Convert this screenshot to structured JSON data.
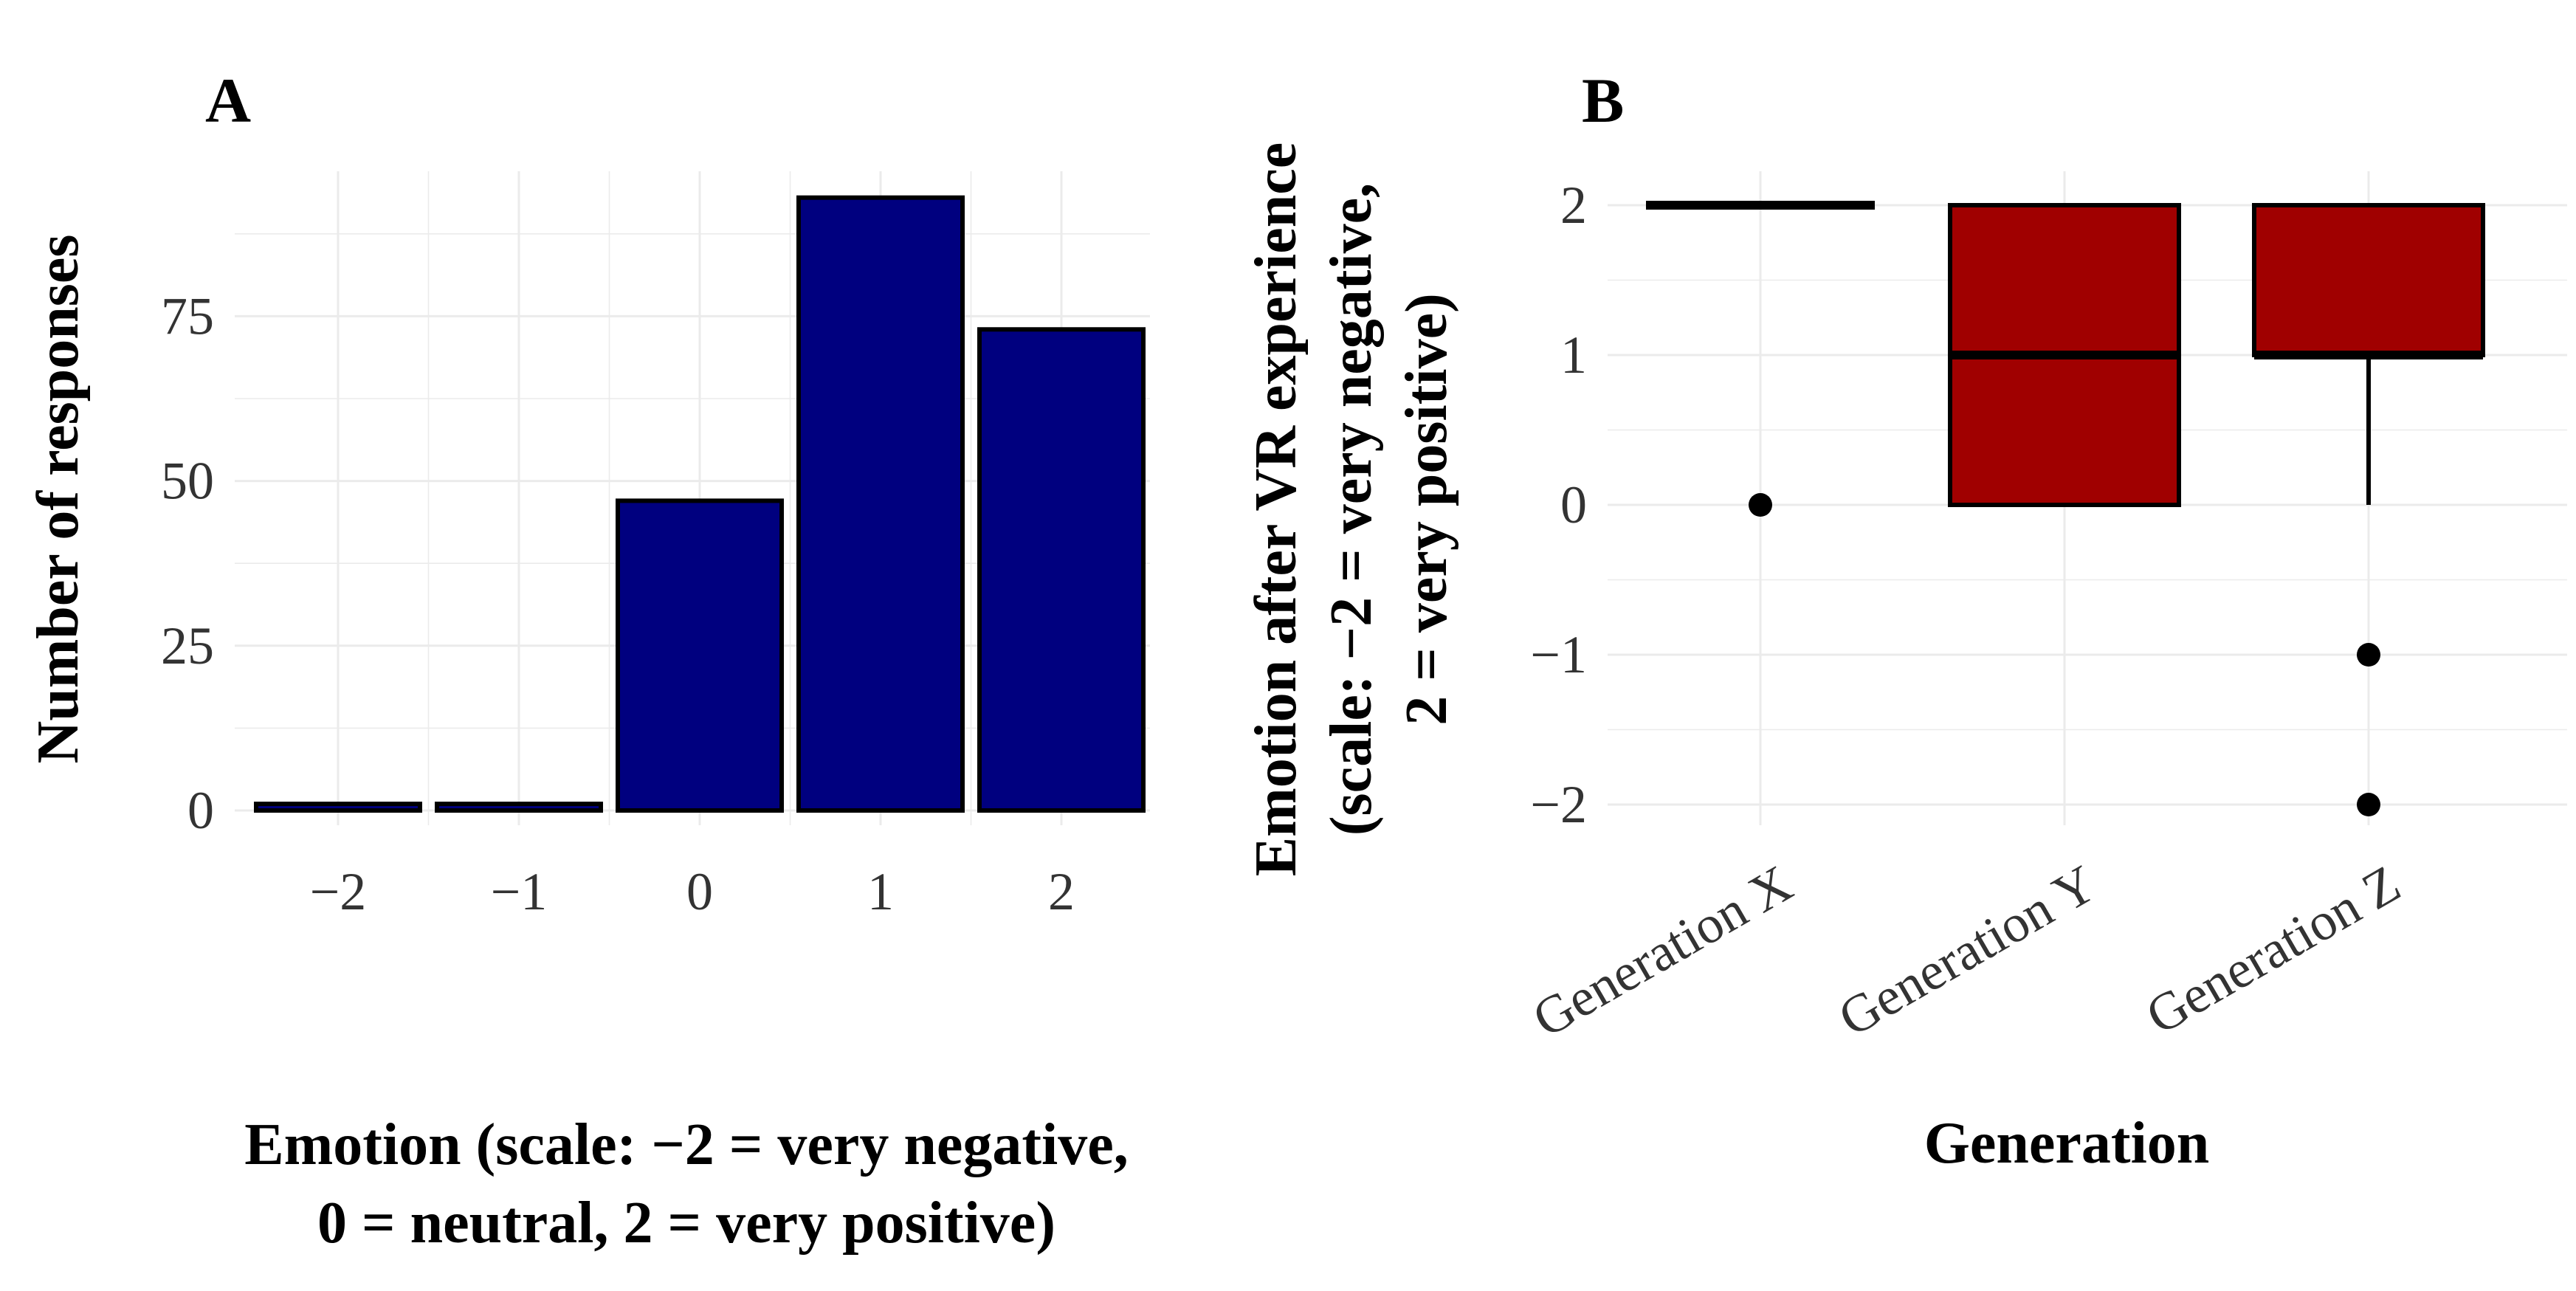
{
  "colors": {
    "bar_fill": "#00007f",
    "box_fill": "#a00000",
    "outline": "#000000",
    "grid": "#ebebeb"
  },
  "chart_data": [
    {
      "panel": "A",
      "type": "bar",
      "categories": [
        "−2",
        "−1",
        "0",
        "1",
        "2"
      ],
      "values": [
        1,
        1,
        47,
        93,
        73
      ],
      "ylim": [
        0,
        97
      ],
      "yticks": [
        0,
        25,
        50,
        75
      ],
      "ytick_labels": [
        "0",
        "25",
        "50",
        "75"
      ],
      "xlabel_lines": [
        "Emotion (scale: −2 = very negative,",
        "0 = neutral, 2 = very positive)"
      ],
      "ylabel": "Number of responses",
      "grid": true
    },
    {
      "panel": "B",
      "type": "box",
      "categories": [
        "Generation X",
        "Generation Y",
        "Generation Z"
      ],
      "boxes": [
        {
          "name": "Generation X",
          "q1": 2,
          "median": 2,
          "q3": 2,
          "whisker_low": 2,
          "whisker_high": 2,
          "outliers": [
            0
          ]
        },
        {
          "name": "Generation Y",
          "q1": 0,
          "median": 1,
          "q3": 2,
          "whisker_low": 0,
          "whisker_high": 2,
          "outliers": []
        },
        {
          "name": "Generation Z",
          "q1": 1,
          "median": 1,
          "q3": 2,
          "whisker_low": 0,
          "whisker_high": 2,
          "outliers": [
            -1,
            -2
          ]
        }
      ],
      "ylim": [
        -2.2,
        2.2
      ],
      "yticks": [
        -2,
        -1,
        0,
        1,
        2
      ],
      "ytick_labels": [
        "−2",
        "−1",
        "0",
        "1",
        "2"
      ],
      "xlabel": "Generation",
      "ylabel_lines": [
        "Emotion after VR experience",
        "(scale: −2 = very negative,",
        "2 = very positive)"
      ],
      "grid": true
    }
  ]
}
